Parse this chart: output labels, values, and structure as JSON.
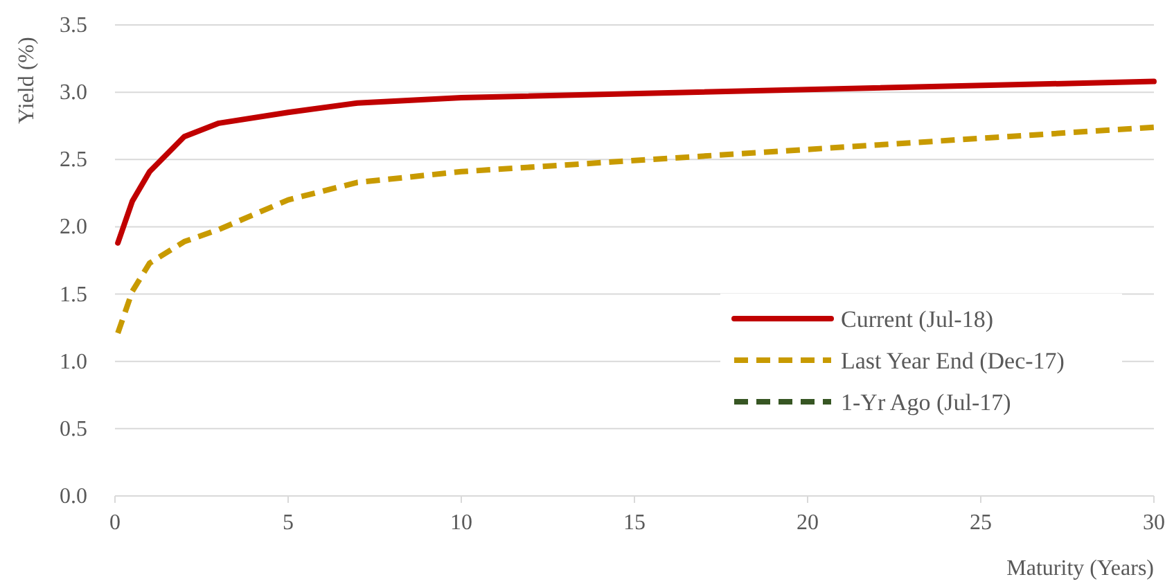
{
  "chart_data": {
    "type": "line",
    "ylabel": "Yield (%)",
    "xlabel": "Maturity (Years)",
    "x": [
      0.083,
      0.5,
      1,
      2,
      3,
      5,
      7,
      10,
      30
    ],
    "series": [
      {
        "name": "Current (Jul-18)",
        "color": "#c00000",
        "line_style": "solid",
        "values": [
          1.88,
          2.19,
          2.41,
          2.67,
          2.77,
          2.85,
          2.92,
          2.96,
          3.08
        ]
      },
      {
        "name": "Last Year End (Dec-17)",
        "color": "#c89a00",
        "line_style": "dashed",
        "values": [
          1.21,
          1.52,
          1.73,
          1.89,
          1.98,
          2.2,
          2.33,
          2.41,
          2.74
        ]
      },
      {
        "name": "1-Yr Ago (Jul-17)",
        "color": "#375623",
        "line_style": "dashed",
        "values": [
          null,
          null,
          null,
          null,
          null,
          null,
          null,
          null,
          null
        ]
      }
    ],
    "xlim": [
      0,
      30
    ],
    "xticks": [
      0,
      5,
      10,
      15,
      20,
      25,
      30
    ],
    "ylim": [
      0,
      3.5
    ],
    "yticks": [
      {
        "value": 0,
        "label": "0.0"
      },
      {
        "value": 0.5,
        "label": "0.5"
      },
      {
        "value": 1,
        "label": "1.0"
      },
      {
        "value": 1.5,
        "label": "1.5"
      },
      {
        "value": 2,
        "label": "2.0"
      },
      {
        "value": 2.5,
        "label": "2.5"
      },
      {
        "value": 3,
        "label": "3.0"
      },
      {
        "value": 3.5,
        "label": "3.5"
      }
    ],
    "grid": "y",
    "legend": "bottom right",
    "marker": "none"
  }
}
